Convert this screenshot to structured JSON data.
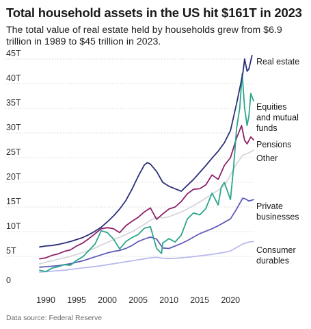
{
  "chart_data": {
    "type": "line",
    "title": "Total household assets in the US hit $161T in 2023",
    "subtitle": "The total value of real estate held by households grew from $6.9 trillion in 1989 to $45 trillion in 2023.",
    "source": "Data source: Federal Reserve",
    "xlabel": "",
    "ylabel": "",
    "xlim": [
      1989,
      2023.75
    ],
    "ylim": [
      0,
      45
    ],
    "x_ticks": [
      1990,
      1995,
      2000,
      2005,
      2010,
      2015,
      2020
    ],
    "x_tick_labels": [
      "1990",
      "1995",
      "2000",
      "2005",
      "2010",
      "2015",
      "2020"
    ],
    "y_ticks": [
      0,
      5,
      10,
      15,
      20,
      25,
      30,
      35,
      40,
      45
    ],
    "y_tick_labels": [
      "0",
      "5T",
      "10T",
      "15T",
      "20T",
      "25T",
      "30T",
      "35T",
      "40T",
      "45T"
    ],
    "grid": "horizontal",
    "legend": "direct labels at right end of lines",
    "series": [
      {
        "name": "Real estate",
        "color": "#2a2e7a",
        "points": [
          [
            1989,
            6.9
          ],
          [
            1990,
            7.1
          ],
          [
            1991,
            7.2
          ],
          [
            1992,
            7.4
          ],
          [
            1993,
            7.7
          ],
          [
            1994,
            8.0
          ],
          [
            1995,
            8.4
          ],
          [
            1996,
            8.8
          ],
          [
            1997,
            9.4
          ],
          [
            1998,
            10.1
          ],
          [
            1999,
            10.9
          ],
          [
            2000,
            12.0
          ],
          [
            2001,
            13.2
          ],
          [
            2002,
            14.6
          ],
          [
            2003,
            16.3
          ],
          [
            2004,
            18.6
          ],
          [
            2005,
            21.2
          ],
          [
            2006,
            23.5
          ],
          [
            2006.5,
            24.0
          ],
          [
            2007,
            23.7
          ],
          [
            2008,
            22.2
          ],
          [
            2009,
            20.0
          ],
          [
            2010,
            19.2
          ],
          [
            2011,
            18.7
          ],
          [
            2012,
            18.2
          ],
          [
            2013,
            19.4
          ],
          [
            2014,
            20.6
          ],
          [
            2015,
            22.0
          ],
          [
            2016,
            23.4
          ],
          [
            2017,
            24.9
          ],
          [
            2018,
            26.3
          ],
          [
            2019,
            28.0
          ],
          [
            2020,
            30.5
          ],
          [
            2021,
            36.0
          ],
          [
            2022,
            42.0
          ],
          [
            2022.3,
            45.0
          ],
          [
            2022.7,
            42.5
          ],
          [
            2023,
            43.0
          ],
          [
            2023.5,
            45.7
          ]
        ]
      },
      {
        "name": "Equities and mutual funds",
        "color": "#2aa68a",
        "points": [
          [
            1989,
            2.2
          ],
          [
            1990,
            1.9
          ],
          [
            1991,
            2.6
          ],
          [
            1992,
            2.9
          ],
          [
            1993,
            3.3
          ],
          [
            1994,
            3.2
          ],
          [
            1995,
            4.2
          ],
          [
            1996,
            4.9
          ],
          [
            1997,
            6.2
          ],
          [
            1998,
            7.5
          ],
          [
            1999,
            10.2
          ],
          [
            2000,
            9.8
          ],
          [
            2001,
            8.5
          ],
          [
            2002,
            6.5
          ],
          [
            2003,
            8.0
          ],
          [
            2004,
            8.8
          ],
          [
            2005,
            9.4
          ],
          [
            2006,
            10.7
          ],
          [
            2007,
            11.0
          ],
          [
            2008,
            6.6
          ],
          [
            2008.8,
            5.6
          ],
          [
            2009,
            7.7
          ],
          [
            2010,
            8.6
          ],
          [
            2011,
            7.9
          ],
          [
            2012,
            9.3
          ],
          [
            2013,
            12.6
          ],
          [
            2014,
            13.8
          ],
          [
            2015,
            13.4
          ],
          [
            2016,
            14.7
          ],
          [
            2017,
            17.8
          ],
          [
            2018,
            15.4
          ],
          [
            2018.5,
            19.0
          ],
          [
            2019,
            20.0
          ],
          [
            2020,
            16.5
          ],
          [
            2020.5,
            23.0
          ],
          [
            2021,
            31.0
          ],
          [
            2021.5,
            35.0
          ],
          [
            2021.9,
            42.0
          ],
          [
            2022.3,
            35.0
          ],
          [
            2022.7,
            31.5
          ],
          [
            2023,
            33.5
          ],
          [
            2023.3,
            38.0
          ],
          [
            2023.75,
            36.5
          ]
        ]
      },
      {
        "name": "Pensions",
        "color": "#8f1f6a",
        "points": [
          [
            1989,
            4.5
          ],
          [
            1990,
            4.7
          ],
          [
            1991,
            5.2
          ],
          [
            1992,
            5.5
          ],
          [
            1993,
            6.0
          ],
          [
            1994,
            6.3
          ],
          [
            1995,
            7.1
          ],
          [
            1996,
            7.7
          ],
          [
            1997,
            8.6
          ],
          [
            1998,
            9.6
          ],
          [
            1999,
            10.6
          ],
          [
            2000,
            10.8
          ],
          [
            2001,
            10.6
          ],
          [
            2002,
            9.8
          ],
          [
            2003,
            11.2
          ],
          [
            2004,
            12.1
          ],
          [
            2005,
            12.9
          ],
          [
            2006,
            14.0
          ],
          [
            2007,
            14.8
          ],
          [
            2008,
            12.5
          ],
          [
            2009,
            13.6
          ],
          [
            2010,
            14.6
          ],
          [
            2011,
            15.0
          ],
          [
            2012,
            16.1
          ],
          [
            2013,
            17.7
          ],
          [
            2014,
            18.6
          ],
          [
            2015,
            18.7
          ],
          [
            2016,
            19.5
          ],
          [
            2017,
            21.5
          ],
          [
            2018,
            20.6
          ],
          [
            2019,
            23.4
          ],
          [
            2020,
            25.0
          ],
          [
            2021,
            29.0
          ],
          [
            2021.8,
            31.5
          ],
          [
            2022.3,
            28.5
          ],
          [
            2022.7,
            27.8
          ],
          [
            2023,
            28.5
          ],
          [
            2023.3,
            29.2
          ],
          [
            2023.75,
            28.6
          ]
        ]
      },
      {
        "name": "Other",
        "color": "#d5d5dc",
        "points": [
          [
            1989,
            3.5
          ],
          [
            1990,
            3.8
          ],
          [
            1991,
            4.1
          ],
          [
            1992,
            4.4
          ],
          [
            1993,
            4.7
          ],
          [
            1994,
            5.0
          ],
          [
            1995,
            5.4
          ],
          [
            1996,
            5.8
          ],
          [
            1997,
            6.2
          ],
          [
            1998,
            6.7
          ],
          [
            1999,
            7.3
          ],
          [
            2000,
            7.8
          ],
          [
            2001,
            8.4
          ],
          [
            2002,
            8.9
          ],
          [
            2003,
            9.4
          ],
          [
            2004,
            10.0
          ],
          [
            2005,
            10.7
          ],
          [
            2006,
            11.5
          ],
          [
            2007,
            12.3
          ],
          [
            2008,
            12.9
          ],
          [
            2009,
            12.8
          ],
          [
            2010,
            13.0
          ],
          [
            2011,
            13.5
          ],
          [
            2012,
            14.0
          ],
          [
            2013,
            14.6
          ],
          [
            2014,
            15.3
          ],
          [
            2015,
            16.0
          ],
          [
            2016,
            16.8
          ],
          [
            2017,
            17.6
          ],
          [
            2018,
            18.4
          ],
          [
            2019,
            19.3
          ],
          [
            2020,
            21.5
          ],
          [
            2021,
            23.8
          ],
          [
            2022,
            25.5
          ],
          [
            2023,
            26.0
          ],
          [
            2023.75,
            26.5
          ]
        ]
      },
      {
        "name": "Private businesses",
        "color": "#5d5ab8",
        "points": [
          [
            1989,
            2.8
          ],
          [
            1990,
            2.9
          ],
          [
            1991,
            3.0
          ],
          [
            1992,
            3.1
          ],
          [
            1993,
            3.3
          ],
          [
            1994,
            3.5
          ],
          [
            1995,
            3.8
          ],
          [
            1996,
            4.1
          ],
          [
            1997,
            4.5
          ],
          [
            1998,
            4.9
          ],
          [
            1999,
            5.3
          ],
          [
            2000,
            5.7
          ],
          [
            2001,
            6.0
          ],
          [
            2002,
            6.2
          ],
          [
            2003,
            6.6
          ],
          [
            2004,
            7.2
          ],
          [
            2005,
            8.0
          ],
          [
            2006,
            8.5
          ],
          [
            2007,
            8.9
          ],
          [
            2008,
            8.5
          ],
          [
            2009,
            6.7
          ],
          [
            2010,
            6.6
          ],
          [
            2011,
            7.1
          ],
          [
            2012,
            7.6
          ],
          [
            2013,
            8.2
          ],
          [
            2014,
            8.9
          ],
          [
            2015,
            9.6
          ],
          [
            2016,
            10.1
          ],
          [
            2017,
            10.6
          ],
          [
            2018,
            11.2
          ],
          [
            2019,
            11.9
          ],
          [
            2020,
            12.6
          ],
          [
            2021,
            14.6
          ],
          [
            2022,
            16.8
          ],
          [
            2022.5,
            16.6
          ],
          [
            2023,
            16.2
          ],
          [
            2023.75,
            16.5
          ]
        ]
      },
      {
        "name": "Consumer durables",
        "color": "#b9b9ee",
        "points": [
          [
            1989,
            1.8
          ],
          [
            1990,
            1.9
          ],
          [
            1991,
            2.0
          ],
          [
            1992,
            2.1
          ],
          [
            1993,
            2.2
          ],
          [
            1994,
            2.35
          ],
          [
            1995,
            2.5
          ],
          [
            1996,
            2.65
          ],
          [
            1997,
            2.8
          ],
          [
            1998,
            2.95
          ],
          [
            1999,
            3.1
          ],
          [
            2000,
            3.3
          ],
          [
            2001,
            3.5
          ],
          [
            2002,
            3.7
          ],
          [
            2003,
            3.9
          ],
          [
            2004,
            4.1
          ],
          [
            2005,
            4.3
          ],
          [
            2006,
            4.5
          ],
          [
            2007,
            4.7
          ],
          [
            2008,
            4.8
          ],
          [
            2009,
            4.6
          ],
          [
            2010,
            4.55
          ],
          [
            2011,
            4.6
          ],
          [
            2012,
            4.7
          ],
          [
            2013,
            4.8
          ],
          [
            2014,
            4.95
          ],
          [
            2015,
            5.1
          ],
          [
            2016,
            5.25
          ],
          [
            2017,
            5.4
          ],
          [
            2018,
            5.6
          ],
          [
            2019,
            5.8
          ],
          [
            2020,
            6.1
          ],
          [
            2021,
            6.8
          ],
          [
            2022,
            7.5
          ],
          [
            2023,
            7.9
          ],
          [
            2023.75,
            8.0
          ]
        ]
      }
    ],
    "series_label_lines": [
      [
        "Real estate"
      ],
      [
        "Equities",
        "and mutual",
        "funds"
      ],
      [
        "Pensions"
      ],
      [
        "Other"
      ],
      [
        "Private",
        "businesses"
      ],
      [
        "Consumer",
        "durables"
      ]
    ]
  }
}
